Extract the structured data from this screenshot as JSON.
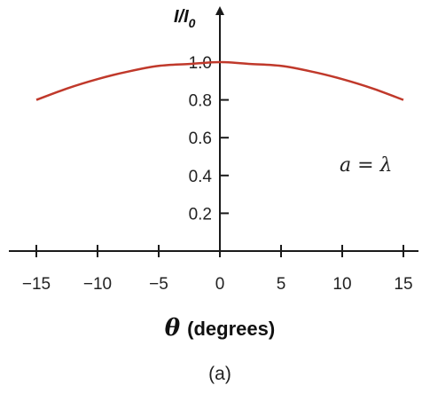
{
  "chart_data": {
    "type": "line",
    "title": "",
    "xlabel": "θ (degrees)",
    "xlabel_symbol": "θ",
    "xlabel_unit": "(degrees)",
    "ylabel": "I/I0",
    "ylabel_main": "I/I",
    "ylabel_subscript": "0",
    "xlim": [
      -15,
      15
    ],
    "ylim": [
      0,
      1.0
    ],
    "xticks": [
      -15,
      -10,
      -5,
      0,
      5,
      10,
      15
    ],
    "xtick_labels": [
      "−15",
      "−10",
      "−5",
      "0",
      "5",
      "10",
      "15"
    ],
    "yticks": [
      0.2,
      0.4,
      0.6,
      0.8,
      1.0
    ],
    "ytick_labels": [
      "0.2",
      "0.4",
      "0.6",
      "0.8",
      "1.0"
    ],
    "series": [
      {
        "color": "#c0392b",
        "x": [
          -15,
          -12.5,
          -10,
          -7.5,
          -5,
          -2.5,
          0,
          2.5,
          5,
          7.5,
          10,
          12.5,
          15
        ],
        "y": [
          0.8,
          0.86,
          0.91,
          0.95,
          0.98,
          0.99,
          1.0,
          0.99,
          0.98,
          0.95,
          0.91,
          0.86,
          0.8
        ]
      }
    ],
    "annotation": {
      "variable": "a",
      "operator": " = ",
      "value": "λ"
    },
    "caption": "(a)",
    "grid": false
  }
}
